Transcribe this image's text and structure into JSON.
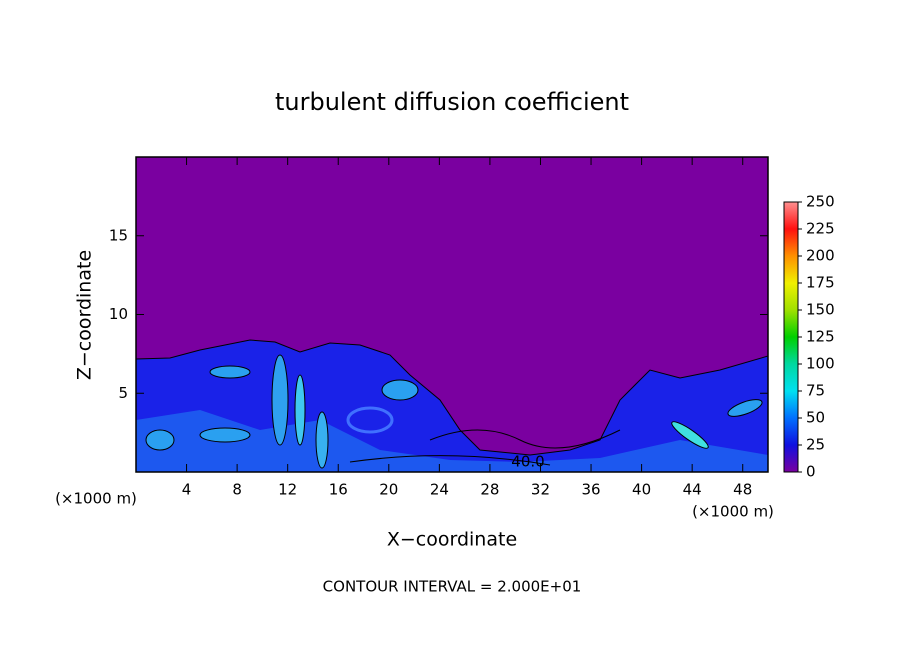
{
  "chart_data": {
    "type": "contour",
    "title": "turbulent diffusion coefficient",
    "xlabel": "X−coordinate",
    "ylabel": "Z−coordinate",
    "x_unit_label": "(×1000 m)",
    "y_unit_label": "(×1000 m)",
    "footer": "CONTOUR INTERVAL = 2.000E+01",
    "annotation": "40.0",
    "xlim": [
      0,
      50
    ],
    "xticks": [
      4,
      8,
      12,
      16,
      20,
      24,
      28,
      32,
      36,
      40,
      44,
      48
    ],
    "ylim": [
      0,
      20
    ],
    "yticks": [
      5,
      10,
      15
    ],
    "clim": [
      0,
      250
    ],
    "cticks": [
      0,
      25,
      50,
      75,
      100,
      125,
      150,
      175,
      200,
      225,
      250
    ],
    "colormap": [
      "#7a00a0",
      "#1010e0",
      "#0070ff",
      "#00e0f0",
      "#00d8a0",
      "#00d000",
      "#a0e000",
      "#f0f000",
      "#ff9000",
      "#ff1010",
      "#ff9090"
    ]
  }
}
